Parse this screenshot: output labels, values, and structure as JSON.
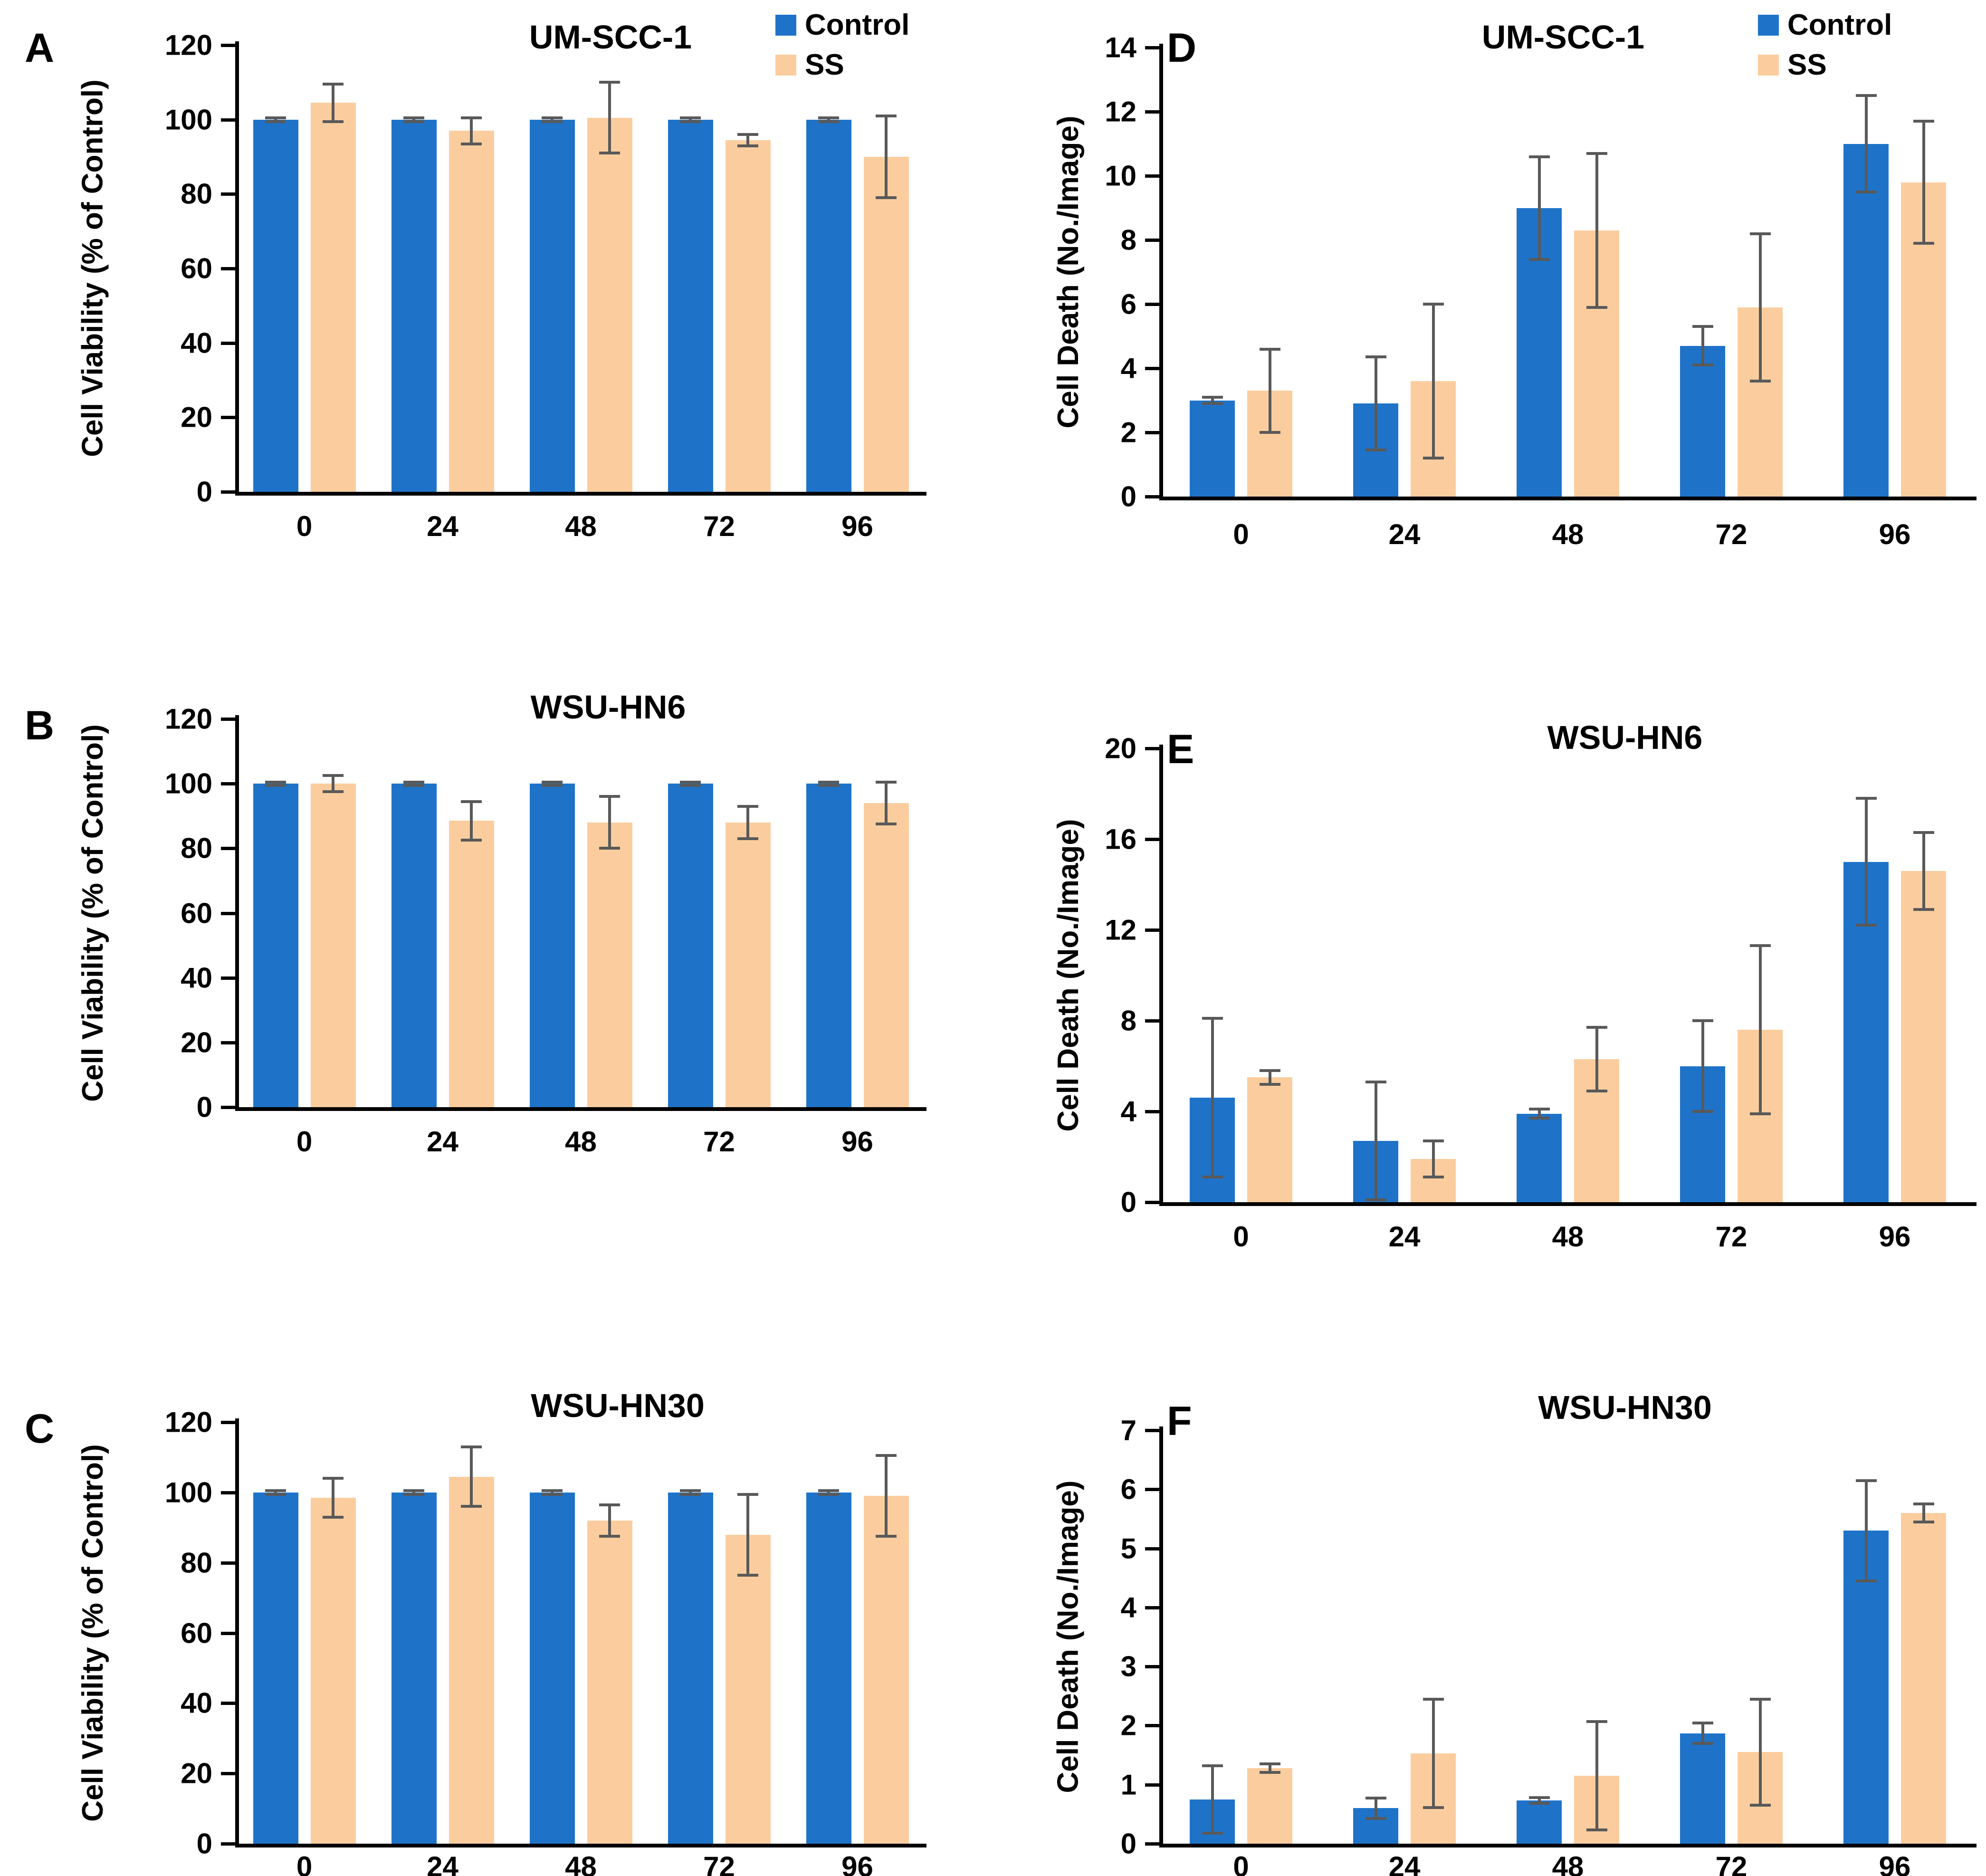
{
  "figure": {
    "background_color": "#ffffff",
    "error_bar_color": "#595959",
    "series_colors": {
      "control": "#1E73C8",
      "ss": "#FBCD9E"
    },
    "legend": {
      "control_label": "Control",
      "ss_label": "SS"
    }
  },
  "chart_data": [
    {
      "type": "bar",
      "panel_letter": "A",
      "title": "UM-SCC-1",
      "ylabel": "Cell Viability (% of Control)",
      "xlabel": "",
      "ylim": [
        0,
        120
      ],
      "ytick_step": 20,
      "grid": false,
      "legend_position": "top-right",
      "categories": [
        "0",
        "24",
        "48",
        "72",
        "96"
      ],
      "series": [
        {
          "name": "Control",
          "values": [
            100,
            100,
            100,
            100,
            100
          ],
          "errors": [
            0.5,
            0.5,
            0.5,
            0.5,
            0.5
          ]
        },
        {
          "name": "SS",
          "values": [
            104.5,
            97,
            100.5,
            94.5,
            90
          ],
          "errors": [
            5,
            3.5,
            9.5,
            1.5,
            11
          ]
        }
      ]
    },
    {
      "type": "bar",
      "panel_letter": "D",
      "title": "UM-SCC-1",
      "ylabel": "Cell Death (No./Image)",
      "xlabel": "",
      "ylim": [
        0,
        14
      ],
      "ytick_step": 2,
      "grid": false,
      "legend_position": "top-right",
      "categories": [
        "0",
        "24",
        "48",
        "72",
        "96"
      ],
      "series": [
        {
          "name": "Control",
          "values": [
            3.0,
            2.9,
            9.0,
            4.7,
            11.0
          ],
          "errors": [
            0.1,
            1.45,
            1.6,
            0.6,
            1.5
          ]
        },
        {
          "name": "SS",
          "values": [
            3.3,
            3.6,
            8.3,
            5.9,
            9.8
          ],
          "errors": [
            1.3,
            2.4,
            2.4,
            2.3,
            1.9
          ]
        }
      ]
    },
    {
      "type": "bar",
      "panel_letter": "B",
      "title": "WSU-HN6",
      "ylabel": "Cell Viability (% of Control)",
      "xlabel": "",
      "ylim": [
        0,
        120
      ],
      "ytick_step": 20,
      "grid": false,
      "legend_position": "none",
      "categories": [
        "0",
        "24",
        "48",
        "72",
        "96"
      ],
      "series": [
        {
          "name": "Control",
          "values": [
            100,
            100,
            100,
            100,
            100
          ],
          "errors": [
            0.5,
            0.5,
            0.5,
            0.5,
            0.5
          ]
        },
        {
          "name": "SS",
          "values": [
            100,
            88.5,
            88,
            88,
            94
          ],
          "errors": [
            2.5,
            6,
            8,
            5,
            6.5
          ]
        }
      ]
    },
    {
      "type": "bar",
      "panel_letter": "E",
      "title": "WSU-HN6",
      "ylabel": "Cell Death (No./Image)",
      "xlabel": "",
      "ylim": [
        0,
        20
      ],
      "ytick_step": 4,
      "grid": false,
      "legend_position": "none",
      "categories": [
        "0",
        "24",
        "48",
        "72",
        "96"
      ],
      "series": [
        {
          "name": "Control",
          "values": [
            4.6,
            2.7,
            3.9,
            6.0,
            15.0
          ],
          "errors": [
            3.5,
            2.6,
            0.2,
            2.0,
            2.8
          ]
        },
        {
          "name": "SS",
          "values": [
            5.5,
            1.9,
            6.3,
            7.6,
            14.6
          ],
          "errors": [
            0.3,
            0.8,
            1.4,
            3.7,
            1.7
          ]
        }
      ]
    },
    {
      "type": "bar",
      "panel_letter": "C",
      "title": "WSU-HN30",
      "ylabel": "Cell Viability (% of Control)",
      "xlabel": "",
      "ylim": [
        0,
        120
      ],
      "ytick_step": 20,
      "grid": false,
      "legend_position": "none",
      "categories": [
        "0",
        "24",
        "48",
        "72",
        "96"
      ],
      "series": [
        {
          "name": "Control",
          "values": [
            100,
            100,
            100,
            100,
            100
          ],
          "errors": [
            0.5,
            0.5,
            0.5,
            0.5,
            0.5
          ]
        },
        {
          "name": "SS",
          "values": [
            98.5,
            104.5,
            92,
            88,
            99
          ],
          "errors": [
            5.5,
            8.5,
            4.5,
            11.5,
            11.5
          ]
        }
      ]
    },
    {
      "type": "bar",
      "panel_letter": "F",
      "title": "WSU-HN30",
      "ylabel": "Cell Death (No./Image)",
      "xlabel": "",
      "ylim": [
        0,
        7
      ],
      "ytick_step": 1,
      "grid": false,
      "legend_position": "none",
      "categories": [
        "0",
        "24",
        "48",
        "72",
        "96"
      ],
      "series": [
        {
          "name": "Control",
          "values": [
            0.75,
            0.6,
            0.73,
            1.87,
            5.3
          ],
          "errors": [
            0.57,
            0.17,
            0.05,
            0.17,
            0.85
          ]
        },
        {
          "name": "SS",
          "values": [
            1.28,
            1.53,
            1.15,
            1.55,
            5.6
          ],
          "errors": [
            0.07,
            0.92,
            0.92,
            0.9,
            0.15
          ]
        }
      ]
    }
  ]
}
